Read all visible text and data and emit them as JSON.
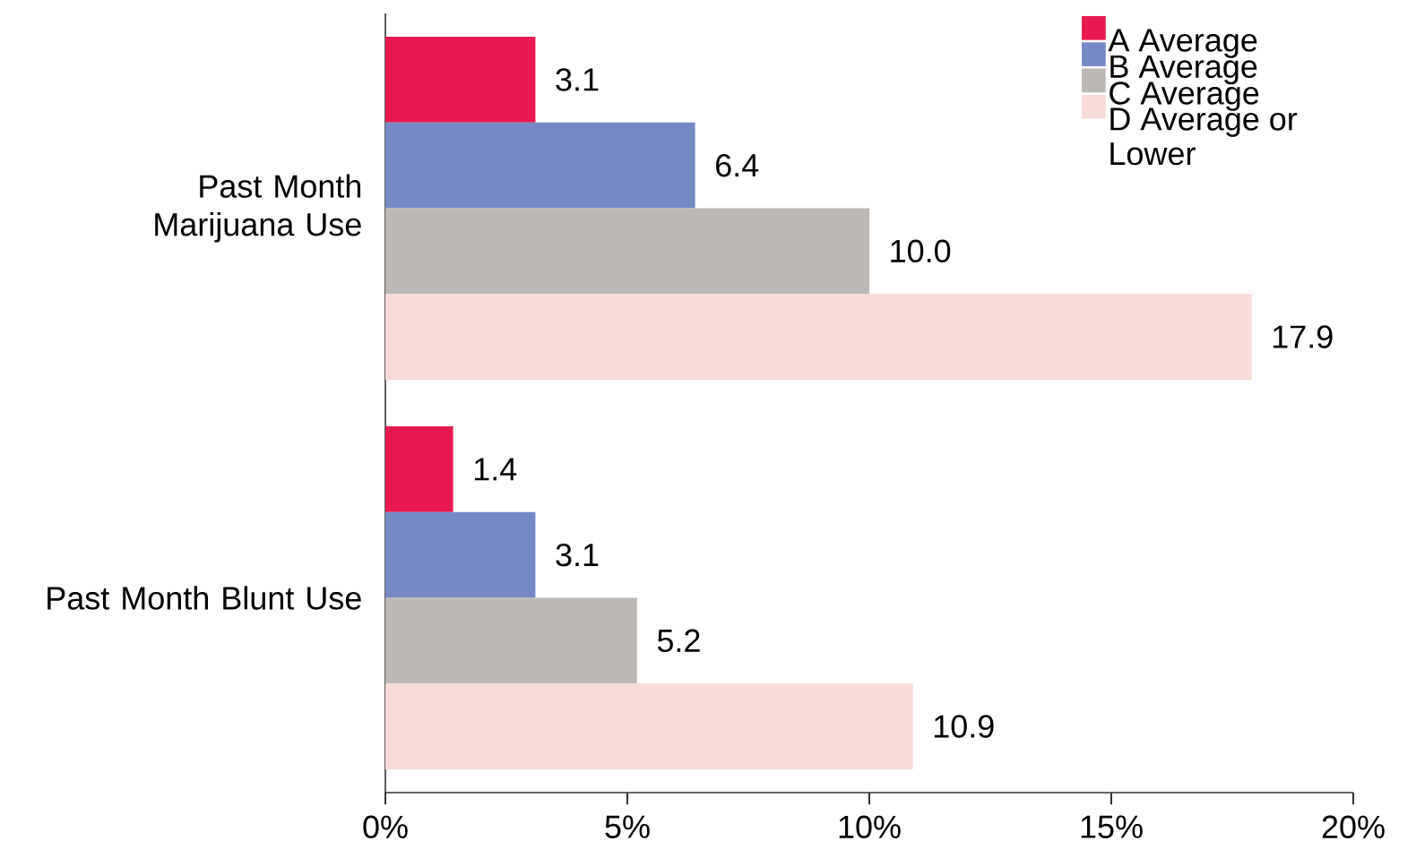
{
  "chart_data": {
    "type": "bar",
    "orientation": "horizontal",
    "categories": [
      "Past Month Marijuana Use",
      "Past Month Blunt Use"
    ],
    "series": [
      {
        "name": "A Average",
        "color": "#e8194f",
        "values": [
          3.1,
          1.4
        ],
        "value_labels": [
          "3.1",
          "1.4"
        ]
      },
      {
        "name": "B Average",
        "color": "#7589c4",
        "values": [
          6.4,
          3.1
        ],
        "value_labels": [
          "6.4",
          "3.1"
        ]
      },
      {
        "name": "C Average",
        "color": "#bcb8b5",
        "values": [
          10.0,
          5.2
        ],
        "value_labels": [
          "10.0",
          "5.2"
        ]
      },
      {
        "name": "D Average or Lower",
        "color": "#f8dad7",
        "values": [
          17.9,
          10.9
        ],
        "value_labels": [
          "17.9",
          "10.9"
        ]
      }
    ],
    "xlim": [
      0,
      20
    ],
    "xticks": [
      {
        "value": 0,
        "label": "0%"
      },
      {
        "value": 5,
        "label": "5%"
      },
      {
        "value": 10,
        "label": "10%"
      },
      {
        "value": 15,
        "label": "15%"
      },
      {
        "value": 20,
        "label": "20%"
      }
    ],
    "legend": "top right",
    "grid": false
  }
}
